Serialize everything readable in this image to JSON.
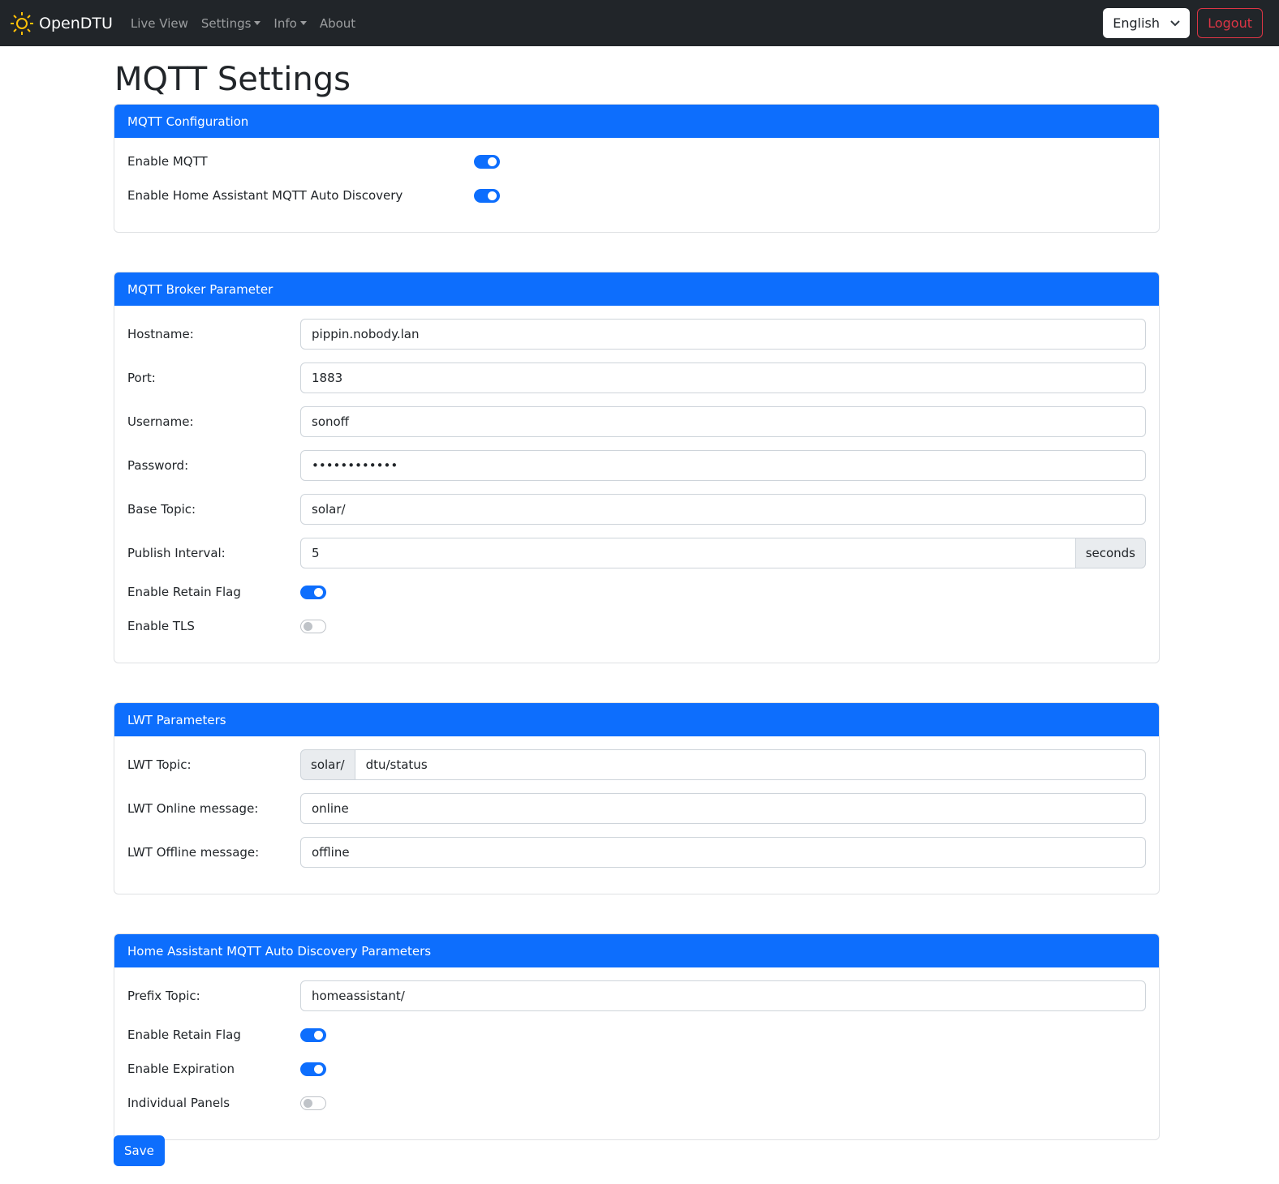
{
  "nav": {
    "brand": "OpenDTU",
    "links": [
      {
        "label": "Live View"
      },
      {
        "label": "Settings"
      },
      {
        "label": "Info"
      },
      {
        "label": "About"
      }
    ],
    "language": "English",
    "logout": "Logout"
  },
  "page": {
    "title": "MQTT Settings",
    "save": "Save"
  },
  "config": {
    "header": "MQTT Configuration",
    "enable_mqtt": {
      "label": "Enable MQTT",
      "on": true
    },
    "enable_ha": {
      "label": "Enable Home Assistant MQTT Auto Discovery",
      "on": true
    }
  },
  "broker": {
    "header": "MQTT Broker Parameter",
    "hostname": {
      "label": "Hostname:",
      "value": "pippin.nobody.lan"
    },
    "port": {
      "label": "Port:",
      "value": "1883"
    },
    "username": {
      "label": "Username:",
      "value": "sonoff"
    },
    "password": {
      "label": "Password:",
      "value": "••••••••••••"
    },
    "base_topic": {
      "label": "Base Topic:",
      "value": "solar/"
    },
    "publish_interval": {
      "label": "Publish Interval:",
      "value": "5",
      "unit": "seconds"
    },
    "retain": {
      "label": "Enable Retain Flag",
      "on": true
    },
    "tls": {
      "label": "Enable TLS",
      "on": false
    }
  },
  "lwt": {
    "header": "LWT Parameters",
    "topic": {
      "label": "LWT Topic:",
      "prefix": "solar/",
      "value": "dtu/status"
    },
    "online": {
      "label": "LWT Online message:",
      "value": "online"
    },
    "offline": {
      "label": "LWT Offline message:",
      "value": "offline"
    }
  },
  "ha": {
    "header": "Home Assistant MQTT Auto Discovery Parameters",
    "prefix": {
      "label": "Prefix Topic:",
      "value": "homeassistant/"
    },
    "retain": {
      "label": "Enable Retain Flag",
      "on": true
    },
    "expiration": {
      "label": "Enable Expiration",
      "on": true
    },
    "panels": {
      "label": "Individual Panels",
      "on": false
    }
  }
}
